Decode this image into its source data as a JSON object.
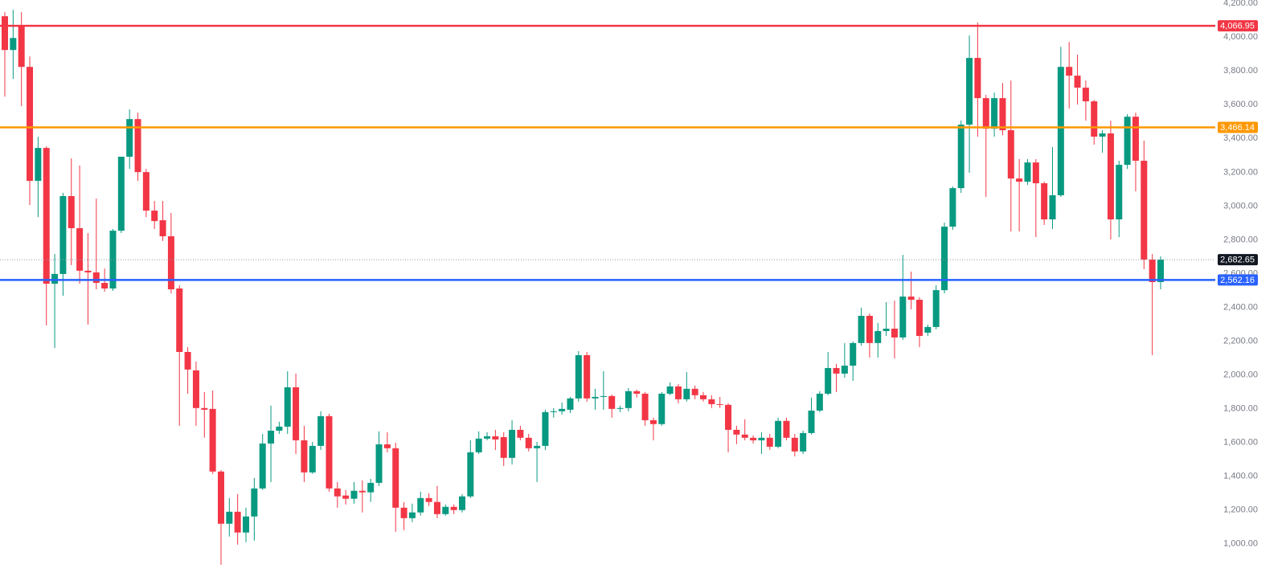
{
  "chart_data": {
    "type": "candlestick",
    "open": [
      4124,
      3924,
      4067,
      3824,
      3149,
      3344,
      2540,
      2598,
      3059,
      2869,
      2617,
      2607,
      2545,
      2512,
      2854,
      3292,
      3515,
      3201,
      2973,
      2916,
      2821,
      2512,
      2136,
      2027,
      1804,
      1799,
      1428,
      1119,
      1190,
      1067,
      1162,
      1328,
      1594,
      1670,
      1694,
      1927,
      1613,
      1423,
      1580,
      1756,
      1328,
      1286,
      1267,
      1314,
      1305,
      1361,
      1589,
      1566,
      1214,
      1152,
      1186,
      1271,
      1248,
      1176,
      1219,
      1200,
      1281,
      1542,
      1623,
      1637,
      1632,
      1509,
      1675,
      1628,
      1566,
      1580,
      1780,
      1785,
      1794,
      1861,
      2117,
      1861,
      1870,
      1875,
      1799,
      1804,
      1904,
      1889,
      1732,
      1709,
      1889,
      1932,
      1856,
      1918,
      1880,
      1856,
      1827,
      1823,
      1675,
      1647,
      1628,
      1613,
      1628,
      1575,
      1728,
      1628,
      1547,
      1656,
      1789,
      1889,
      2041,
      2008,
      2055,
      2189,
      2350,
      2189,
      2260,
      2274,
      2222,
      2464,
      2445,
      2250,
      2284,
      2502,
      2878,
      3106,
      3482,
      3877,
      3639,
      3458,
      3639,
      3449,
      3163,
      3144,
      3258,
      3135,
      2921,
      3064,
      3824,
      3772,
      3701,
      3620,
      3411,
      3430,
      2921,
      3244,
      3529,
      3268,
      2683,
      2550
    ],
    "high": [
      4148,
      4162,
      4148,
      3886,
      3410,
      3354,
      2716,
      3078,
      3282,
      3240,
      2840,
      3044,
      2630,
      2864,
      3292,
      3572,
      3553,
      3220,
      3030,
      3030,
      2959,
      2531,
      2165,
      2079,
      1899,
      1908,
      1437,
      1271,
      1295,
      1214,
      1390,
      1651,
      1818,
      1723,
      2022,
      2008,
      1699,
      1604,
      1785,
      1770,
      1366,
      1319,
      1366,
      1376,
      1385,
      1666,
      1661,
      1599,
      1247,
      1238,
      1309,
      1300,
      1343,
      1233,
      1233,
      1295,
      1613,
      1666,
      1661,
      1675,
      1661,
      1732,
      1699,
      1651,
      1604,
      1794,
      1804,
      1837,
      1870,
      2141,
      2136,
      1918,
      2022,
      1884,
      1818,
      1923,
      1913,
      1899,
      1747,
      1899,
      1956,
      1946,
      2017,
      1937,
      1899,
      1880,
      1870,
      1832,
      1699,
      1737,
      1642,
      1661,
      1651,
      1747,
      1747,
      1651,
      1670,
      1865,
      1904,
      2136,
      2065,
      2188,
      2198,
      2398,
      2364,
      2308,
      2431,
      2441,
      2711,
      2612,
      2460,
      2298,
      2531,
      2902,
      3116,
      3506,
      4010,
      4086,
      3658,
      3672,
      3729,
      3743,
      3278,
      3278,
      3278,
      3144,
      3349,
      3943,
      3972,
      3896,
      3743,
      3629,
      3449,
      3506,
      3268,
      3544,
      3553,
      3387,
      2716,
      2702
    ],
    "low": [
      3648,
      3753,
      3591,
      3006,
      2935,
      2293,
      2160,
      2469,
      2650,
      2540,
      2298,
      2507,
      2493,
      2498,
      2840,
      3220,
      3149,
      2935,
      2864,
      2793,
      2483,
      1699,
      1889,
      1699,
      1628,
      1414,
      876,
      1043,
      995,
      1010,
      1019,
      1319,
      1366,
      1651,
      1651,
      1532,
      1366,
      1414,
      1556,
      1309,
      1214,
      1233,
      1238,
      1186,
      1248,
      1343,
      1542,
      1071,
      1081,
      1129,
      1167,
      1224,
      1152,
      1167,
      1176,
      1186,
      1271,
      1532,
      1613,
      1556,
      1461,
      1470,
      1613,
      1547,
      1366,
      1556,
      1747,
      1766,
      1775,
      1842,
      1842,
      1794,
      1794,
      1747,
      1780,
      1785,
      1866,
      1699,
      1613,
      1699,
      1880,
      1832,
      1842,
      1856,
      1842,
      1804,
      1804,
      1542,
      1590,
      1613,
      1594,
      1532,
      1556,
      1566,
      1613,
      1518,
      1532,
      1647,
      1780,
      1880,
      1899,
      1984,
      1965,
      2174,
      2103,
      2103,
      2231,
      2098,
      2208,
      2388,
      2165,
      2231,
      2270,
      2483,
      2859,
      3078,
      3197,
      3411,
      3054,
      3411,
      3420,
      2850,
      2850,
      3125,
      2816,
      2888,
      2864,
      3054,
      3577,
      3601,
      3506,
      3363,
      3316,
      2802,
      2816,
      3220,
      3087,
      2626,
      2117,
      2507
    ],
    "close": [
      3924,
      3995,
      3824,
      3149,
      3344,
      2540,
      2598,
      3059,
      2869,
      2617,
      2607,
      2545,
      2512,
      2854,
      3292,
      3515,
      3201,
      2973,
      2911,
      2821,
      2507,
      2136,
      2032,
      1804,
      1794,
      1428,
      1119,
      1190,
      1067,
      1162,
      1328,
      1594,
      1670,
      1694,
      1927,
      1613,
      1423,
      1580,
      1756,
      1328,
      1281,
      1267,
      1314,
      1305,
      1361,
      1589,
      1566,
      1214,
      1152,
      1186,
      1271,
      1248,
      1176,
      1219,
      1200,
      1281,
      1542,
      1623,
      1637,
      1618,
      1509,
      1675,
      1628,
      1566,
      1580,
      1780,
      1785,
      1799,
      1861,
      2117,
      1861,
      1870,
      1875,
      1799,
      1804,
      1904,
      1889,
      1732,
      1709,
      1889,
      1932,
      1856,
      1918,
      1880,
      1856,
      1827,
      1823,
      1675,
      1647,
      1628,
      1613,
      1628,
      1575,
      1728,
      1628,
      1547,
      1656,
      1789,
      1889,
      2041,
      2008,
      2055,
      2189,
      2350,
      2189,
      2260,
      2274,
      2222,
      2464,
      2445,
      2231,
      2284,
      2502,
      2878,
      3106,
      3482,
      3877,
      3639,
      3458,
      3639,
      3449,
      3163,
      3144,
      3258,
      3135,
      2921,
      3064,
      3824,
      3772,
      3701,
      3620,
      3411,
      3430,
      2921,
      3244,
      3529,
      3268,
      2683,
      2550,
      2682.65
    ],
    "up_color": "#089981",
    "down_color": "#f23645",
    "ylim": [
      780,
      4220
    ],
    "yticks": [
      {
        "value": 1000,
        "label": "1,000.00"
      },
      {
        "value": 1200,
        "label": "1,200.00"
      },
      {
        "value": 1400,
        "label": "1,400.00"
      },
      {
        "value": 1600,
        "label": "1,600.00"
      },
      {
        "value": 1800,
        "label": "1,800.00"
      },
      {
        "value": 2000,
        "label": "2,000.00"
      },
      {
        "value": 2200,
        "label": "2,200.00"
      },
      {
        "value": 2400,
        "label": "2,400.00"
      },
      {
        "value": 2600,
        "label": "2,600.00"
      },
      {
        "value": 2800,
        "label": "2,800.00"
      },
      {
        "value": 3000,
        "label": "3,000.00"
      },
      {
        "value": 3200,
        "label": "3,200.00"
      },
      {
        "value": 3400,
        "label": "3,400.00"
      },
      {
        "value": 3600,
        "label": "3,600.00"
      },
      {
        "value": 3800,
        "label": "3,800.00"
      },
      {
        "value": 4000,
        "label": "4,000.00"
      },
      {
        "value": 4200,
        "label": "4,200.00"
      }
    ],
    "grid": false,
    "levels": [
      {
        "value": 4066.95,
        "label": "4,066.95",
        "color": "#f23645"
      },
      {
        "value": 3466.14,
        "label": "3,466.14",
        "color": "#ff9800"
      },
      {
        "value": 2562.16,
        "label": "2,562.16",
        "color": "#2962ff"
      }
    ],
    "last_price": {
      "value": 2682.65,
      "label": "2,682.65",
      "color": "#131722"
    }
  }
}
